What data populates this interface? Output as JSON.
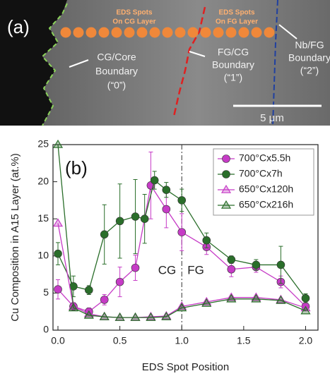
{
  "panel_a": {
    "label": "(a)",
    "spots_cg": [
      "EDS Spots",
      "On CG Layer"
    ],
    "spots_fg": [
      "EDS Spots",
      "On FG Layer"
    ],
    "boundary_0": [
      "CG/Core",
      "Boundary",
      "(“0”)"
    ],
    "boundary_1": [
      "FG/CG",
      "Boundary",
      "(“1”)"
    ],
    "boundary_2": [
      "Nb/FG",
      "Boundary",
      "(“2”)"
    ],
    "scale": "5 μm"
  },
  "chart_data": {
    "type": "line",
    "label": "(b)",
    "xlabel": "EDS Spot Position",
    "ylabel": "Cu Composition in A15 Layer (at.%)",
    "xlim": [
      -0.04,
      2.1
    ],
    "ylim": [
      0,
      25
    ],
    "xticks": [
      {
        "value": 0,
        "label": "0.0"
      },
      0.5,
      {
        "value": 1,
        "label": "1.0"
      },
      1.5,
      {
        "value": 2,
        "label": "2.0"
      }
    ],
    "yticks": [
      0,
      5,
      10,
      15,
      20,
      25
    ],
    "divider_x": 1.0,
    "region_labels": [
      "CG",
      "FG"
    ],
    "legend": "upper right",
    "series": [
      {
        "name": "700°Cx5.5h",
        "color": "#c63bc6",
        "marker": "circle",
        "x": [
          0,
          0.125,
          0.25,
          0.375,
          0.5,
          0.625,
          0.75,
          0.875,
          1.0,
          1.2,
          1.4,
          1.6,
          1.8,
          2.0
        ],
        "values": [
          5.5,
          3.2,
          2.5,
          4.1,
          6.5,
          8.4,
          19.5,
          16.3,
          13.2,
          11.2,
          8.2,
          8.5,
          6.5,
          3.2
        ],
        "errors": [
          1.3,
          0.5,
          0.5,
          0.7,
          2,
          1.7,
          4.5,
          2.5,
          2.5,
          1,
          1,
          0.7,
          0.8,
          0.5
        ]
      },
      {
        "name": "700°Cx7h",
        "color": "#2a6e2a",
        "marker": "circle",
        "x": [
          0,
          0.125,
          0.25,
          0.375,
          0.5,
          0.625,
          0.7,
          0.78,
          0.875,
          1.0,
          1.2,
          1.4,
          1.6,
          1.8,
          2.0
        ],
        "values": [
          10.3,
          5.9,
          5.4,
          12.9,
          14.7,
          15.3,
          15.0,
          20.2,
          18.9,
          17.5,
          12.1,
          9.5,
          8.8,
          8.8,
          4.3
        ],
        "errors": [
          1.5,
          1.4,
          0.6,
          4,
          5,
          5,
          3.3,
          1.2,
          1,
          1.5,
          1,
          0.5,
          0.7,
          2.5,
          0.6
        ]
      },
      {
        "name": "650°Cx120h",
        "color": "#c63bc6",
        "marker": "triangle",
        "x": [
          0,
          0.125,
          0.25,
          0.375,
          0.5,
          0.625,
          0.75,
          0.875,
          1.0,
          1.2,
          1.4,
          1.6,
          1.8,
          2.0
        ],
        "values": [
          14.4,
          3.2,
          2.2,
          1.8,
          1.7,
          1.7,
          1.8,
          1.9,
          3.2,
          3.8,
          4.4,
          4.4,
          4.1,
          3.0
        ]
      },
      {
        "name": "650°Cx216h",
        "color": "#2a6e2a",
        "marker": "triangle",
        "x": [
          0,
          0.125,
          0.25,
          0.375,
          0.5,
          0.625,
          0.75,
          0.875,
          1.0,
          1.2,
          1.4,
          1.6,
          1.8,
          2.0
        ],
        "values": [
          25,
          3.0,
          2.0,
          1.8,
          1.7,
          1.7,
          1.7,
          1.8,
          3.0,
          3.6,
          4.2,
          4.2,
          4.0,
          2.6
        ]
      }
    ]
  }
}
